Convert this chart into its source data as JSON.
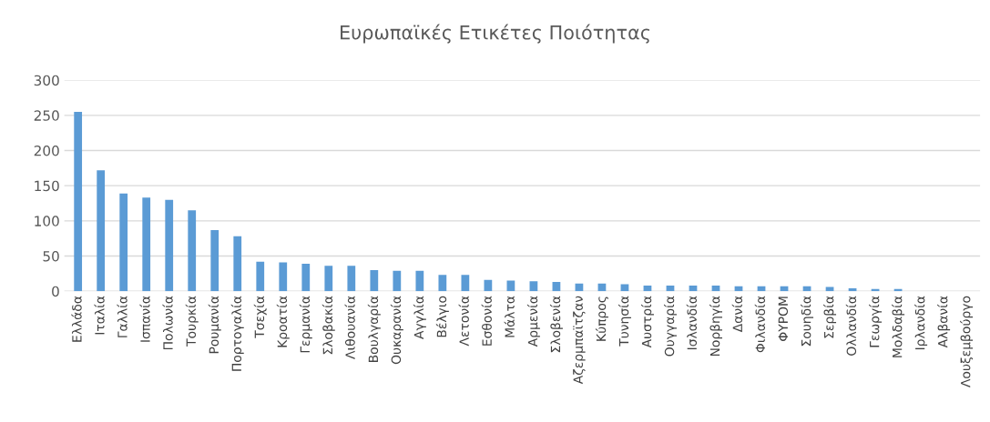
{
  "chart_data": {
    "type": "bar",
    "title": "Ευρωπαϊκές Ετικέτες Ποιότητας",
    "categories": [
      "Ελλάδα",
      "Ιταλία",
      "Γαλλία",
      "Ισπανία",
      "Πολωνία",
      "Τουρκία",
      "Ρουμανία",
      "Πορτογαλία",
      "Τσεχία",
      "Κροατία",
      "Γερμανία",
      "Σλοβακία",
      "Λιθουανία",
      "Βουλγαρία",
      "Ουκαρανία",
      "Αγγλία",
      "Βέλγιο",
      "Λετονία",
      "Εσθονία",
      "Μάλτα",
      "Αρμενία",
      "Σλοβενία",
      "Αζερμπαϊτζαν",
      "Κύπρος",
      "Τυνησία",
      "Αυστρία",
      "Ουγγαρία",
      "Ισλανδία",
      "Νορβηγία",
      "Δανία",
      "Φιλανδία",
      "ΦΥΡΟΜ",
      "Σουηδία",
      "Σερβία",
      "Ολλανδία",
      "Γεωργία",
      "Μολδαβία",
      "Ιρλανδία",
      "Αλβανία",
      "Λουξεμβούργο"
    ],
    "values": [
      255,
      172,
      139,
      133,
      130,
      115,
      87,
      78,
      42,
      41,
      39,
      36,
      36,
      30,
      29,
      29,
      23,
      23,
      16,
      15,
      14,
      13,
      11,
      11,
      10,
      8,
      8,
      8,
      8,
      7,
      7,
      7,
      7,
      6,
      4,
      3,
      3,
      0,
      0,
      0
    ],
    "color": "#5b9bd5",
    "ylim": [
      0,
      300
    ],
    "yticks": [
      0,
      50,
      100,
      150,
      200,
      250,
      300
    ],
    "grid": "y"
  }
}
